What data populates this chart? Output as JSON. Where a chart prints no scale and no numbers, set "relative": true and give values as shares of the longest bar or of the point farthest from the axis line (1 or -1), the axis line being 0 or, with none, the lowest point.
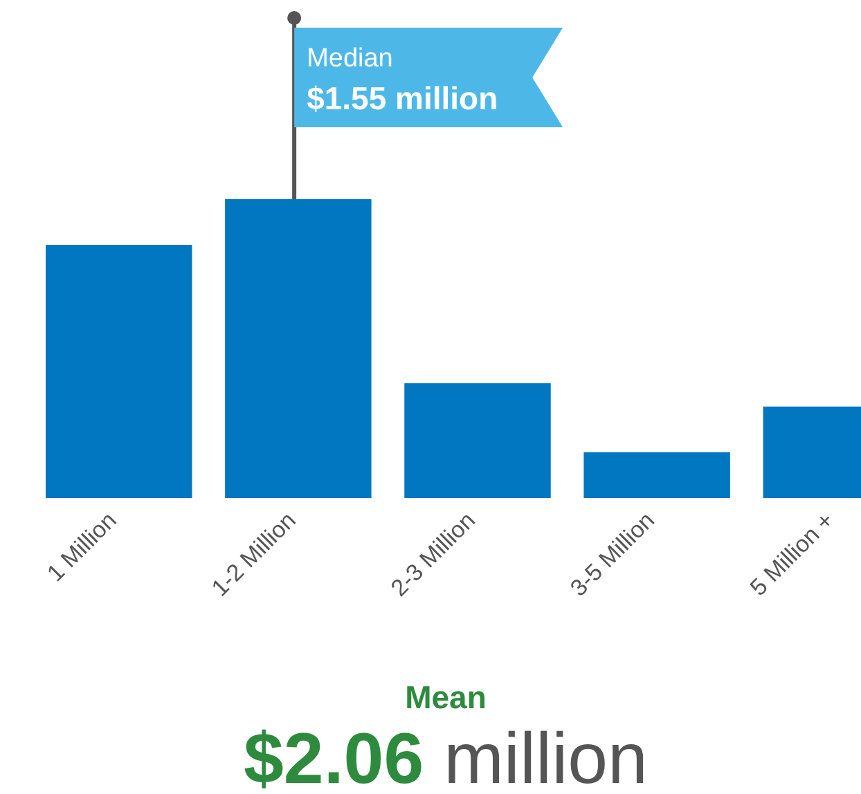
{
  "chart_data": {
    "type": "bar",
    "relative": true,
    "categories": [
      "1 Million",
      "1-2 Million",
      "2-3 Million",
      "3-5 Million",
      "5 Million +"
    ],
    "values": [
      0.847,
      1,
      0.384,
      0.153,
      0.306
    ],
    "color": "#0077c0",
    "annotations": [
      "Median",
      "$1.55 million",
      "Mean",
      "$2.06",
      "million"
    ]
  }
}
